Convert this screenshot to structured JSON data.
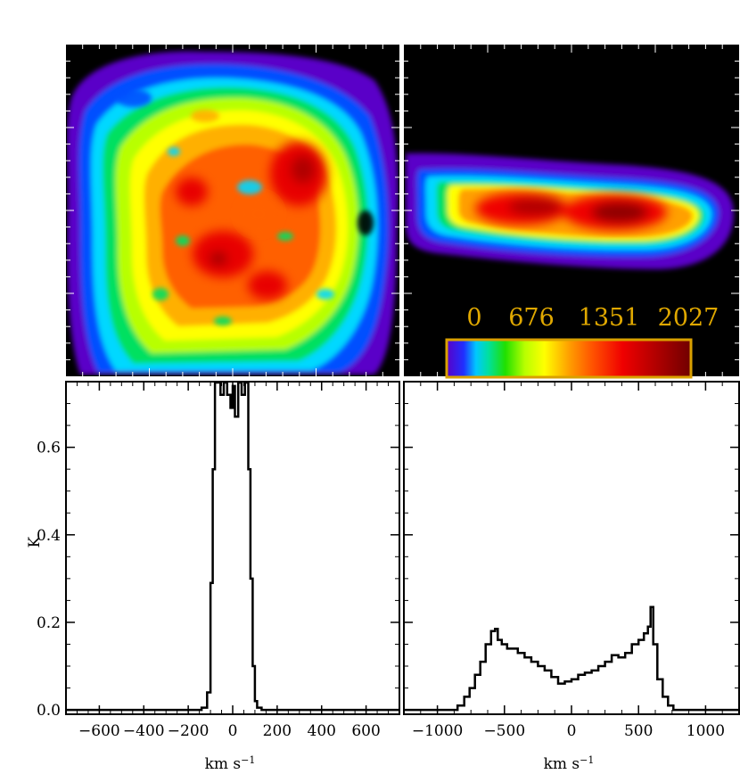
{
  "chart_data": [
    {
      "panel": "face-on-map",
      "type": "heatmap",
      "description_colors": [
        "#5a00c8",
        "#0050ff",
        "#00d8ff",
        "#00e060",
        "#b8ff00",
        "#ffff00",
        "#ffb000",
        "#ff6000",
        "#e80000",
        "#800000"
      ]
    },
    {
      "panel": "edge-on-map",
      "type": "heatmap",
      "colorbar": {
        "tick_labels": [
          "0",
          "676",
          "1351",
          "2027"
        ],
        "range": [
          0,
          2027
        ],
        "border_color": "#d9a000"
      }
    },
    {
      "panel": "face-on-spectrum",
      "type": "line",
      "xlabel": "km s",
      "xlabel_sup": "−1",
      "ylabel": "K",
      "xlim": [
        -750,
        750
      ],
      "ylim": [
        -0.01,
        0.75
      ],
      "x_ticks": [
        -600,
        -400,
        -200,
        0,
        200,
        400,
        600
      ],
      "x_tick_labels": [
        "−600",
        "−400",
        "−200",
        "0",
        "200",
        "400",
        "600"
      ],
      "y_ticks": [
        0.0,
        0.2,
        0.4,
        0.6
      ],
      "y_tick_labels": [
        "0.0",
        "0.2",
        "0.4",
        "0.6"
      ],
      "x": [
        -750,
        -200,
        -140,
        -115,
        -100,
        -90,
        -80,
        -70,
        -55,
        -40,
        -25,
        -10,
        0,
        10,
        25,
        40,
        55,
        70,
        80,
        90,
        100,
        110,
        130,
        750
      ],
      "y": [
        0.0,
        0.0,
        0.005,
        0.04,
        0.29,
        0.55,
        0.75,
        0.75,
        0.72,
        0.75,
        0.72,
        0.69,
        0.74,
        0.67,
        0.75,
        0.72,
        0.75,
        0.55,
        0.3,
        0.1,
        0.02,
        0.005,
        0.0,
        0.0
      ]
    },
    {
      "panel": "edge-on-spectrum",
      "type": "line",
      "xlabel": "km s",
      "xlabel_sup": "−1",
      "xlim": [
        -1250,
        1250
      ],
      "ylim": [
        -0.01,
        0.75
      ],
      "x_ticks": [
        -1000,
        -500,
        0,
        500,
        1000
      ],
      "x_tick_labels": [
        "−1000",
        "−500",
        "0",
        "500",
        "1000"
      ],
      "x": [
        -1250,
        -880,
        -850,
        -800,
        -760,
        -720,
        -680,
        -640,
        -600,
        -570,
        -550,
        -520,
        -480,
        -440,
        -400,
        -350,
        -300,
        -250,
        -200,
        -150,
        -100,
        -50,
        0,
        50,
        100,
        150,
        200,
        250,
        300,
        350,
        400,
        450,
        500,
        540,
        570,
        590,
        610,
        640,
        680,
        720,
        760,
        1250
      ],
      "y": [
        0.0,
        0.0,
        0.01,
        0.03,
        0.05,
        0.08,
        0.11,
        0.15,
        0.18,
        0.185,
        0.16,
        0.15,
        0.14,
        0.14,
        0.13,
        0.12,
        0.11,
        0.1,
        0.09,
        0.075,
        0.06,
        0.065,
        0.07,
        0.08,
        0.085,
        0.09,
        0.1,
        0.11,
        0.125,
        0.12,
        0.13,
        0.15,
        0.16,
        0.175,
        0.19,
        0.235,
        0.15,
        0.07,
        0.03,
        0.01,
        0.0,
        0.0
      ]
    }
  ]
}
